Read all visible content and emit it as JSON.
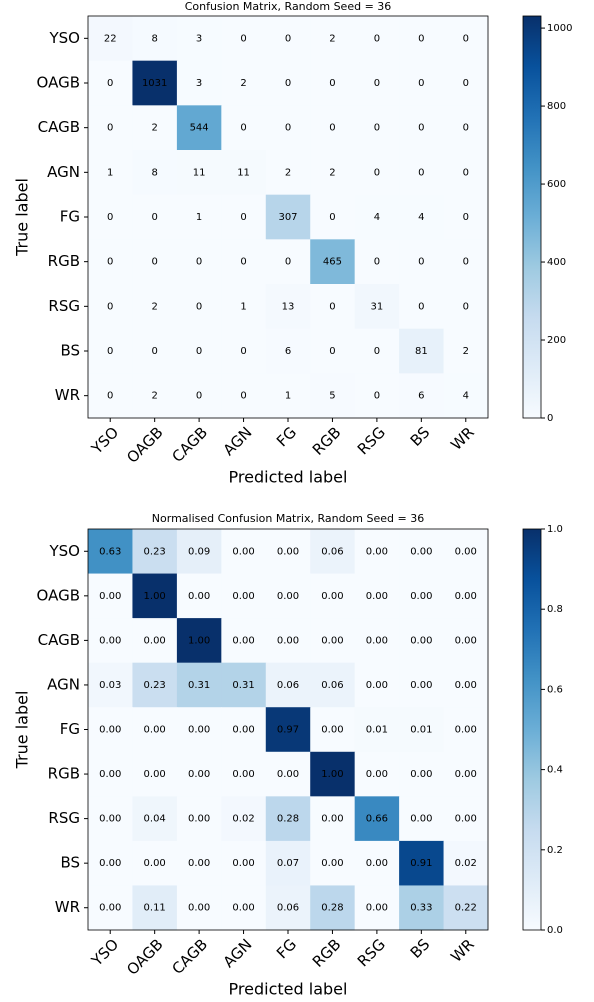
{
  "chart_data": [
    {
      "type": "heatmap",
      "title": "Confusion Matrix, Random Seed = 36",
      "xlabel": "Predicted label",
      "ylabel": "True label",
      "x_categories": [
        "YSO",
        "OAGB",
        "CAGB",
        "AGN",
        "FG",
        "RGB",
        "RSG",
        "BS",
        "WR"
      ],
      "y_categories": [
        "YSO",
        "OAGB",
        "CAGB",
        "AGN",
        "FG",
        "RGB",
        "RSG",
        "BS",
        "WR"
      ],
      "z": [
        [
          22,
          8,
          3,
          0,
          0,
          2,
          0,
          0,
          0
        ],
        [
          0,
          1031,
          3,
          2,
          0,
          0,
          0,
          0,
          0
        ],
        [
          0,
          2,
          544,
          0,
          0,
          0,
          0,
          0,
          0
        ],
        [
          1,
          8,
          11,
          11,
          2,
          2,
          0,
          0,
          0
        ],
        [
          0,
          0,
          1,
          0,
          307,
          0,
          4,
          4,
          0
        ],
        [
          0,
          0,
          0,
          0,
          0,
          465,
          0,
          0,
          0
        ],
        [
          0,
          2,
          0,
          1,
          13,
          0,
          31,
          0,
          0
        ],
        [
          0,
          0,
          0,
          0,
          6,
          0,
          0,
          81,
          2
        ],
        [
          0,
          2,
          0,
          0,
          1,
          5,
          0,
          6,
          4
        ]
      ],
      "colormap": "Blues",
      "colorbar_lim": [
        0,
        1031
      ],
      "colorbar_ticks": [
        0,
        200,
        400,
        600,
        800,
        1000
      ]
    },
    {
      "type": "heatmap",
      "title": "Normalised Confusion Matrix, Random Seed = 36",
      "xlabel": "Predicted label",
      "ylabel": "True label",
      "x_categories": [
        "YSO",
        "OAGB",
        "CAGB",
        "AGN",
        "FG",
        "RGB",
        "RSG",
        "BS",
        "WR"
      ],
      "y_categories": [
        "YSO",
        "OAGB",
        "CAGB",
        "AGN",
        "FG",
        "RGB",
        "RSG",
        "BS",
        "WR"
      ],
      "z": [
        [
          0.63,
          0.23,
          0.09,
          0,
          0,
          0.06,
          0,
          0,
          0
        ],
        [
          0,
          1,
          0,
          0,
          0,
          0,
          0,
          0,
          0
        ],
        [
          0,
          0,
          1,
          0,
          0,
          0,
          0,
          0,
          0
        ],
        [
          0.03,
          0.23,
          0.31,
          0.31,
          0.06,
          0.06,
          0,
          0,
          0
        ],
        [
          0,
          0,
          0,
          0,
          0.97,
          0,
          0.01,
          0.01,
          0
        ],
        [
          0,
          0,
          0,
          0,
          0,
          1,
          0,
          0,
          0
        ],
        [
          0,
          0.04,
          0,
          0.02,
          0.28,
          0,
          0.66,
          0,
          0
        ],
        [
          0,
          0,
          0,
          0,
          0.07,
          0,
          0,
          0.91,
          0.02
        ],
        [
          0,
          0.11,
          0,
          0,
          0.06,
          0.28,
          0,
          0.33,
          0.22
        ]
      ],
      "value_labels": [
        [
          "0.63",
          "0.23",
          "0.09",
          "0.00",
          "0.00",
          "0.06",
          "0.00",
          "0.00",
          "0.00"
        ],
        [
          "0.00",
          "1.00",
          "0.00",
          "0.00",
          "0.00",
          "0.00",
          "0.00",
          "0.00",
          "0.00"
        ],
        [
          "0.00",
          "0.00",
          "1.00",
          "0.00",
          "0.00",
          "0.00",
          "0.00",
          "0.00",
          "0.00"
        ],
        [
          "0.03",
          "0.23",
          "0.31",
          "0.31",
          "0.06",
          "0.06",
          "0.00",
          "0.00",
          "0.00"
        ],
        [
          "0.00",
          "0.00",
          "0.00",
          "0.00",
          "0.97",
          "0.00",
          "0.01",
          "0.01",
          "0.00"
        ],
        [
          "0.00",
          "0.00",
          "0.00",
          "0.00",
          "0.00",
          "1.00",
          "0.00",
          "0.00",
          "0.00"
        ],
        [
          "0.00",
          "0.04",
          "0.00",
          "0.02",
          "0.28",
          "0.00",
          "0.66",
          "0.00",
          "0.00"
        ],
        [
          "0.00",
          "0.00",
          "0.00",
          "0.00",
          "0.07",
          "0.00",
          "0.00",
          "0.91",
          "0.02"
        ],
        [
          "0.00",
          "0.11",
          "0.00",
          "0.00",
          "0.06",
          "0.28",
          "0.00",
          "0.33",
          "0.22"
        ]
      ],
      "colormap": "Blues",
      "colorbar_lim": [
        0,
        1
      ],
      "colorbar_ticks": [
        {
          "value": 0,
          "label": "0.0"
        },
        0.2,
        0.4,
        0.6,
        0.8,
        {
          "value": 1,
          "label": "1.0"
        }
      ]
    }
  ]
}
